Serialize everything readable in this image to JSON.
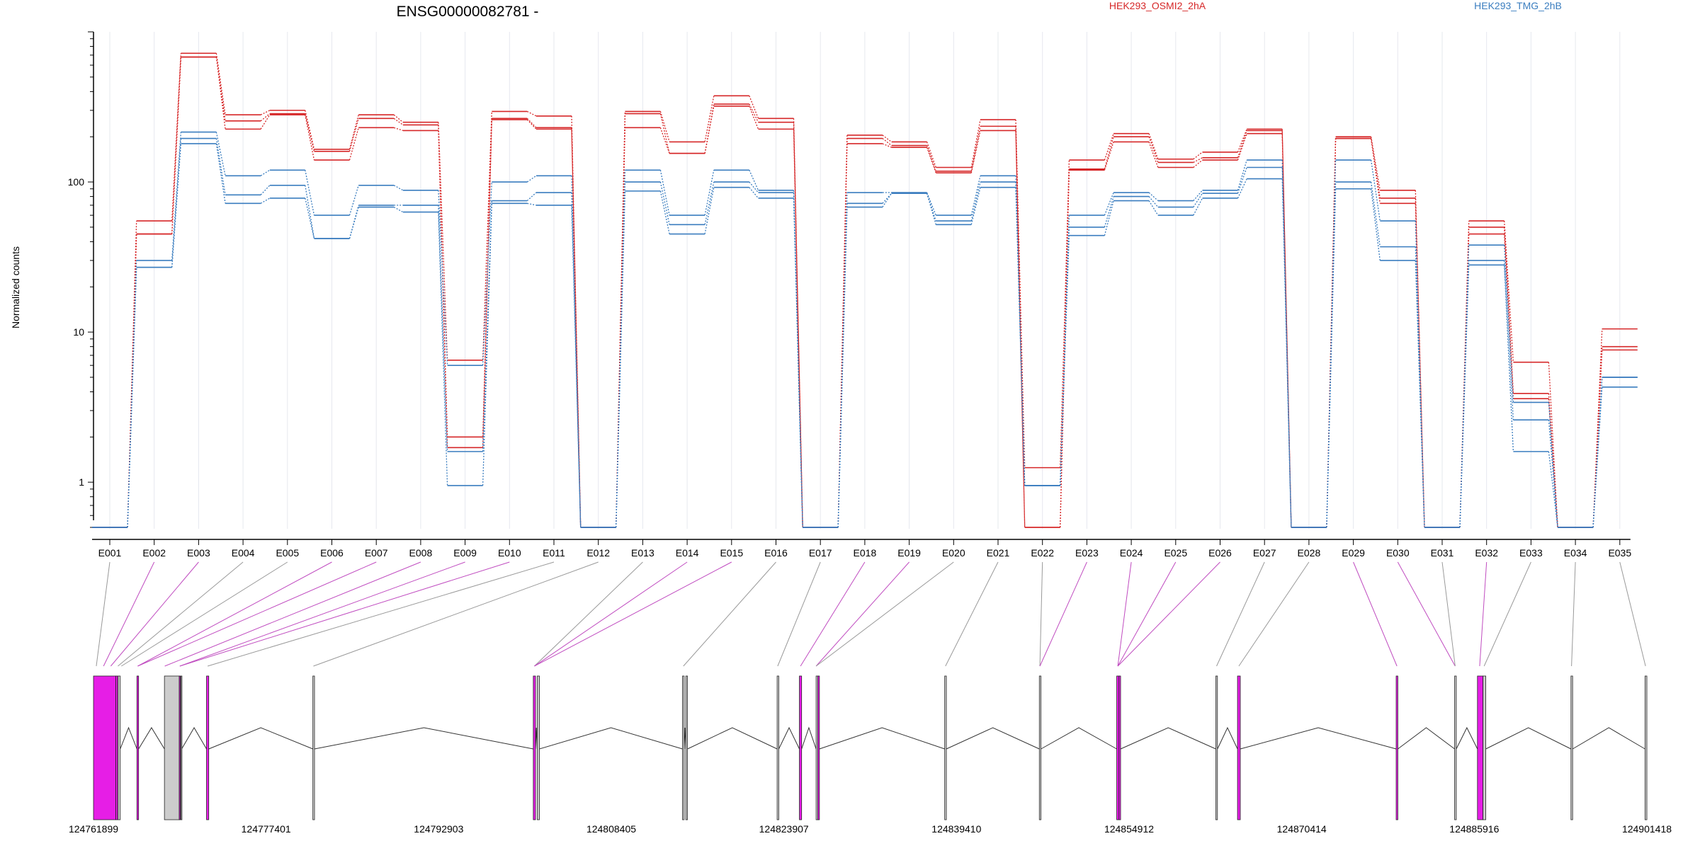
{
  "chart_data": {
    "type": "line",
    "title": "ENSG00000082781 -",
    "ylabel": "Normalized counts",
    "yscale": "log",
    "ylim": [
      0.5,
      1000
    ],
    "yticks": [
      1,
      10,
      100
    ],
    "grid": "vertical",
    "legend_position": "top-right",
    "colors": {
      "red": "#d62728",
      "blue": "#3a7dbf",
      "magenta": "#e61ee6",
      "gray": "#cccccc"
    },
    "exons": [
      "E001",
      "E002",
      "E003",
      "E004",
      "E005",
      "E006",
      "E007",
      "E008",
      "E009",
      "E010",
      "E011",
      "E012",
      "E013",
      "E014",
      "E015",
      "E016",
      "E017",
      "E018",
      "E019",
      "E020",
      "E021",
      "E022",
      "E023",
      "E024",
      "E025",
      "E026",
      "E027",
      "E028",
      "E029",
      "E030",
      "E031",
      "E032",
      "E033",
      "E034",
      "E035"
    ],
    "series": [
      {
        "name": "HEK293_OSMI2_2hA",
        "group": "red",
        "values": [
          0.5,
          55,
          720,
          280,
          300,
          165,
          280,
          250,
          6.5,
          295,
          275,
          0.5,
          295,
          185,
          375,
          265,
          0.5,
          205,
          185,
          125,
          260,
          1.25,
          140,
          210,
          142,
          158,
          225,
          0.5,
          200,
          88,
          0.5,
          55,
          6.3,
          0.5,
          10.5
        ]
      },
      {
        "name": "",
        "group": "red",
        "values": [
          0.5,
          45,
          680,
          255,
          285,
          160,
          265,
          240,
          2.0,
          265,
          230,
          0.5,
          285,
          155,
          330,
          250,
          0.5,
          195,
          175,
          118,
          235,
          0.5,
          122,
          200,
          135,
          145,
          220,
          0.5,
          195,
          78,
          0.5,
          50,
          3.9,
          0.5,
          8.0
        ]
      },
      {
        "name": "",
        "group": "red",
        "values": [
          0.5,
          45,
          680,
          225,
          280,
          140,
          230,
          220,
          1.7,
          260,
          225,
          0.5,
          230,
          155,
          320,
          225,
          0.5,
          180,
          170,
          115,
          220,
          0.5,
          120,
          185,
          125,
          140,
          210,
          0.5,
          195,
          72,
          0.5,
          45,
          3.6,
          0.5,
          7.6
        ]
      },
      {
        "name": "HEK293_TMG_2hB",
        "group": "blue",
        "values": [
          0.5,
          30,
          215,
          110,
          120,
          60,
          95,
          88,
          6.0,
          100,
          110,
          0.5,
          120,
          60,
          120,
          88,
          0.5,
          85,
          85,
          60,
          110,
          0.95,
          60,
          85,
          75,
          88,
          140,
          0.5,
          140,
          55,
          0.5,
          38,
          3.4,
          0.5,
          5.0
        ]
      },
      {
        "name": "",
        "group": "blue",
        "values": [
          0.5,
          27,
          195,
          82,
          95,
          42,
          70,
          70,
          1.6,
          75,
          85,
          0.5,
          100,
          52,
          100,
          85,
          0.5,
          72,
          84,
          55,
          100,
          0.95,
          50,
          80,
          68,
          84,
          125,
          0.5,
          100,
          37,
          0.5,
          30,
          2.6,
          0.5,
          5.0
        ]
      },
      {
        "name": "",
        "group": "blue",
        "values": [
          0.5,
          27,
          180,
          72,
          78,
          42,
          68,
          63,
          0.95,
          72,
          70,
          0.5,
          87,
          45,
          92,
          78,
          0.5,
          68,
          84,
          52,
          92,
          0.95,
          44,
          75,
          60,
          78,
          105,
          0.5,
          90,
          30,
          0.5,
          28,
          1.6,
          0.5,
          4.3
        ]
      }
    ],
    "legend": [
      {
        "label": "HEK293_OSMI2_2hA",
        "color": "#d62728"
      },
      {
        "label": "HEK293_TMG_2hB",
        "color": "#3a7dbf"
      }
    ],
    "genomic_axis": {
      "start": 124761899,
      "end": 124901418,
      "tick_labels": [
        "124761899",
        "124777401",
        "124792903",
        "124808405",
        "124823907",
        "124839410",
        "124854912",
        "124870414",
        "124885916",
        "124901418"
      ]
    },
    "gene_model": [
      {
        "exon": "E001",
        "start": 124761899,
        "end": 124763910,
        "color": "magenta"
      },
      {
        "exon": "E002",
        "start": 124763910,
        "end": 124764080,
        "color": "magenta"
      },
      {
        "exon": "E003",
        "start": 124764100,
        "end": 124764300,
        "color": "gray"
      },
      {
        "exon": "E004",
        "start": 124765800,
        "end": 124765950,
        "color": "magenta"
      },
      {
        "exon": "E005",
        "start": 124768270,
        "end": 124769600,
        "color": "gray"
      },
      {
        "exon": "E006",
        "start": 124769600,
        "end": 124769700,
        "color": "magenta"
      },
      {
        "exon": "E007",
        "start": 124769750,
        "end": 124769820,
        "color": "gray"
      },
      {
        "exon": "E008",
        "start": 124772050,
        "end": 124772250,
        "color": "magenta"
      },
      {
        "exon": "E009",
        "start": 124781600,
        "end": 124781750,
        "color": "gray"
      },
      {
        "exon": "E010",
        "start": 124801400,
        "end": 124801600,
        "color": "magenta"
      },
      {
        "exon": "E011",
        "start": 124801750,
        "end": 124801950,
        "color": "gray"
      },
      {
        "exon": "E012",
        "start": 124814800,
        "end": 124814950,
        "color": "gray"
      },
      {
        "exon": "E013",
        "start": 124815100,
        "end": 124815250,
        "color": "gray"
      },
      {
        "exon": "E014",
        "start": 124823300,
        "end": 124823450,
        "color": "gray"
      },
      {
        "exon": "E015",
        "start": 124825300,
        "end": 124825500,
        "color": "magenta"
      },
      {
        "exon": "E016",
        "start": 124826800,
        "end": 124826950,
        "color": "gray"
      },
      {
        "exon": "E017",
        "start": 124826950,
        "end": 124827100,
        "color": "magenta"
      },
      {
        "exon": "E018",
        "start": 124838350,
        "end": 124838500,
        "color": "gray"
      },
      {
        "exon": "E019",
        "start": 124846850,
        "end": 124847000,
        "color": "gray"
      },
      {
        "exon": "E020",
        "start": 124853800,
        "end": 124854000,
        "color": "magenta"
      },
      {
        "exon": "E021",
        "start": 124854000,
        "end": 124854150,
        "color": "magenta"
      },
      {
        "exon": "E022",
        "start": 124862700,
        "end": 124862850,
        "color": "gray"
      },
      {
        "exon": "E023",
        "start": 124864650,
        "end": 124864900,
        "color": "magenta"
      },
      {
        "exon": "E024",
        "start": 124878900,
        "end": 124879050,
        "color": "magenta"
      },
      {
        "exon": "E025",
        "start": 124884150,
        "end": 124884300,
        "color": "gray"
      },
      {
        "exon": "E026",
        "start": 124886200,
        "end": 124886700,
        "color": "magenta"
      },
      {
        "exon": "E027",
        "start": 124886700,
        "end": 124886950,
        "color": "gray"
      },
      {
        "exon": "E028",
        "start": 124894600,
        "end": 124894750,
        "color": "gray"
      },
      {
        "exon": "E029",
        "start": 124901250,
        "end": 124901418,
        "color": "gray"
      }
    ],
    "connector_colors": [
      "gray",
      "magenta",
      "magenta",
      "gray",
      "gray",
      "magenta",
      "magenta",
      "magenta",
      "magenta",
      "magenta",
      "gray",
      "gray",
      "gray",
      "magenta",
      "magenta",
      "gray",
      "gray",
      "magenta",
      "magenta",
      "gray",
      "gray",
      "gray",
      "magenta",
      "magenta",
      "magenta",
      "magenta",
      "gray",
      "gray",
      "magenta",
      "magenta",
      "gray",
      "magenta",
      "gray",
      "gray",
      "gray"
    ],
    "connector_targets": [
      124762150,
      124762800,
      124763450,
      124764090,
      124764400,
      124765870,
      124765870,
      124768300,
      124769650,
      124769650,
      124772150,
      124781650,
      124801500,
      124801500,
      124801500,
      124814880,
      124823350,
      124825400,
      124826800,
      124826800,
      124838420,
      124846900,
      124846900,
      124853900,
      124853900,
      124853900,
      124862770,
      124864770,
      124878970,
      124884200,
      124884200,
      124886400,
      124886800,
      124894650,
      124901300
    ]
  }
}
